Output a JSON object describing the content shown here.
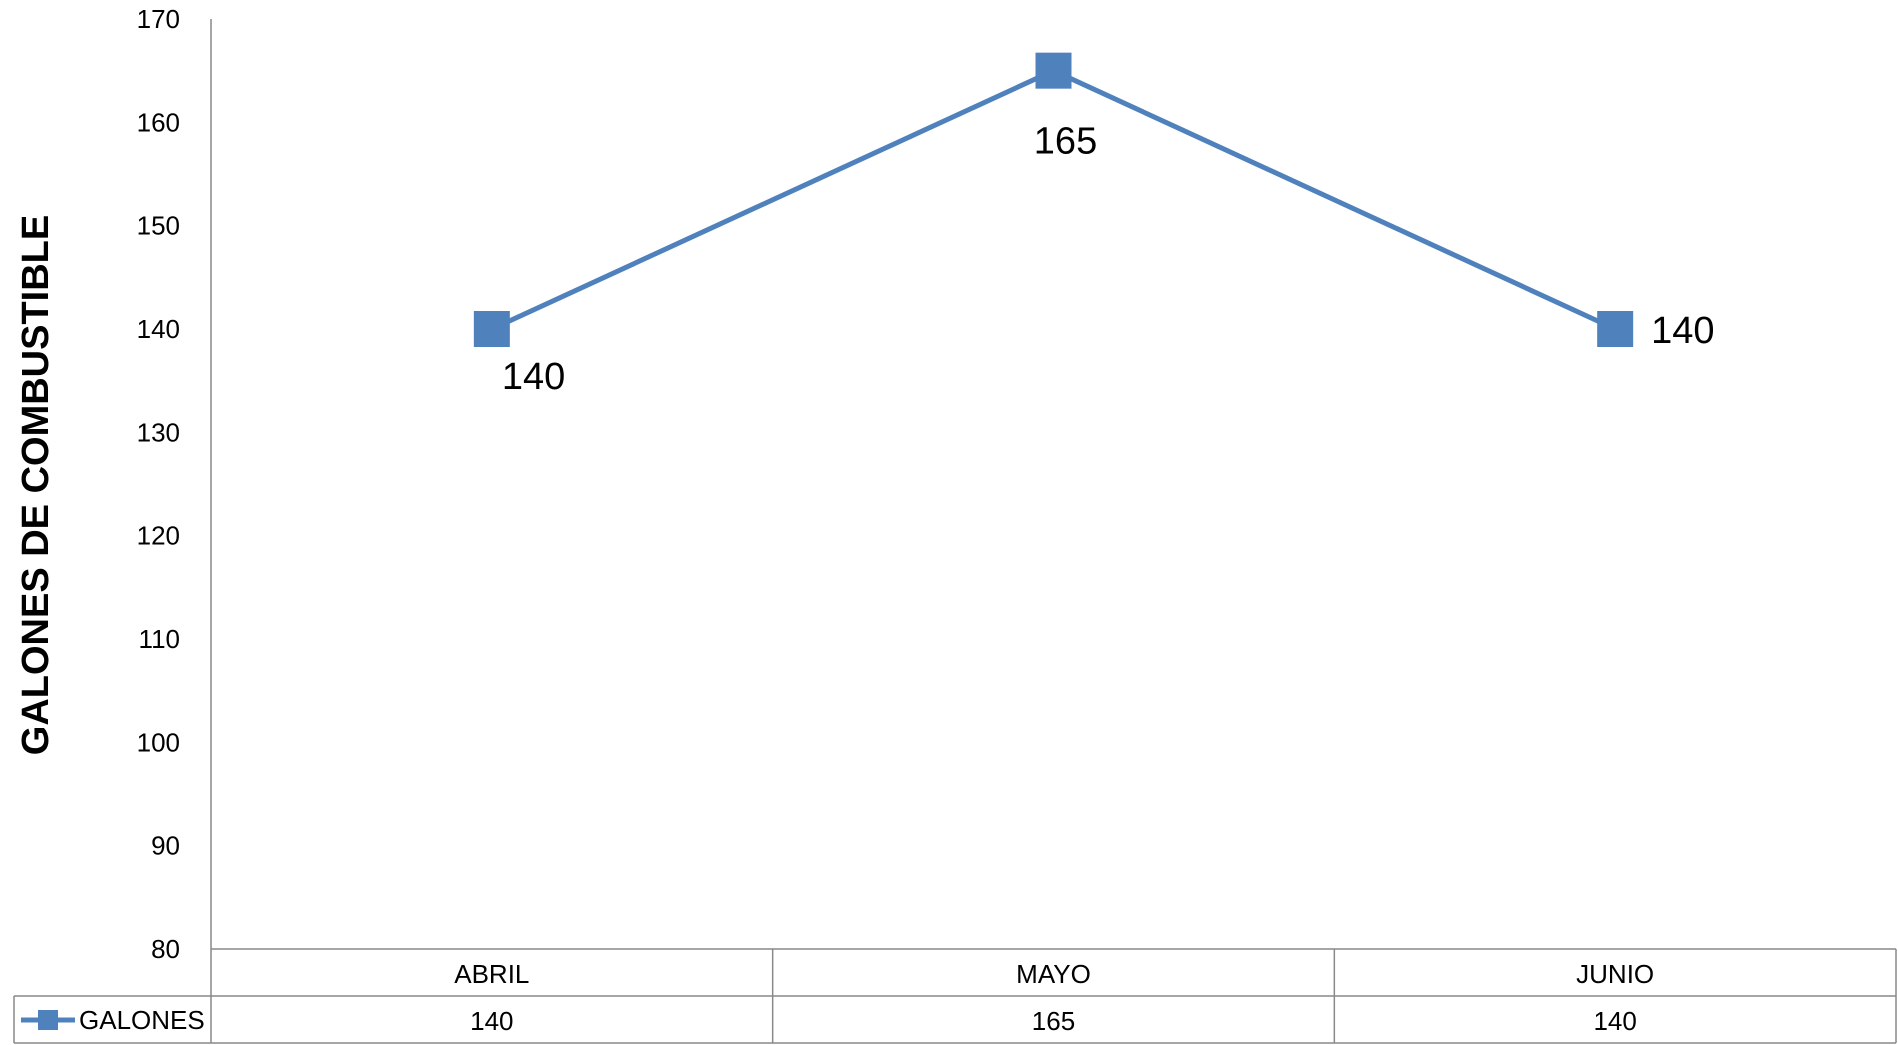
{
  "chart_data": {
    "type": "line",
    "categories": [
      "ABRIL",
      "MAYO",
      "JUNIO"
    ],
    "series": [
      {
        "name": "GALONES",
        "values": [
          140,
          165,
          140
        ],
        "color": "#4F81BD"
      }
    ],
    "ylabel": "GALONES DE COMBUSTIBLE",
    "xlabel": "",
    "ylim": [
      80,
      170
    ],
    "yticks": [
      80,
      90,
      100,
      110,
      120,
      130,
      140,
      150,
      160,
      170
    ],
    "ytick_labels": [
      "80",
      "90",
      "100",
      "110",
      "120",
      "130",
      "140",
      "150",
      "160",
      "170"
    ],
    "data_labels": [
      "140",
      "165",
      "140"
    ],
    "table_values": [
      "140",
      "165",
      "140"
    ],
    "grid": false,
    "legend": "data-table",
    "axis_color": "#898989"
  }
}
